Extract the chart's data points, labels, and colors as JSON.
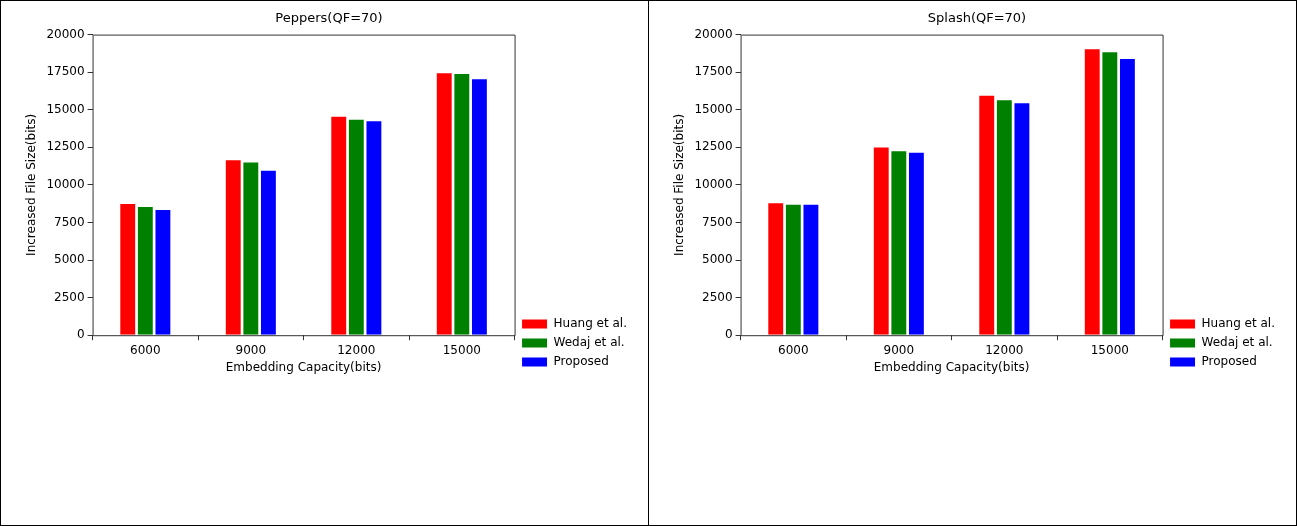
{
  "chart_data": [
    {
      "type": "bar",
      "title": "Peppers(QF=70)",
      "xlabel": "Embedding Capacity(bits)",
      "ylabel": "Increased File Size(bits)",
      "categories": [
        "6000",
        "9000",
        "12000",
        "15000"
      ],
      "series": [
        {
          "name": "Huang et al.",
          "color": "#ff0000",
          "values": [
            8800,
            11700,
            14600,
            17500
          ]
        },
        {
          "name": "Wedaj et al.",
          "color": "#008000",
          "values": [
            8600,
            11550,
            14400,
            17450
          ]
        },
        {
          "name": "Proposed",
          "color": "#0000ff",
          "values": [
            8400,
            11000,
            14300,
            17100
          ]
        }
      ],
      "ylim": [
        0,
        20000
      ],
      "yticks": [
        0,
        2500,
        5000,
        7500,
        10000,
        12500,
        15000,
        17500,
        20000
      ],
      "grid": false,
      "legend": "bottom right"
    },
    {
      "type": "bar",
      "title": "Splash(QF=70)",
      "xlabel": "Embedding Capacity(bits)",
      "ylabel": "Increased File Size(bits)",
      "categories": [
        "6000",
        "9000",
        "12000",
        "15000"
      ],
      "series": [
        {
          "name": "Huang et al.",
          "color": "#ff0000",
          "values": [
            8850,
            12550,
            16000,
            19100
          ]
        },
        {
          "name": "Wedaj et al.",
          "color": "#008000",
          "values": [
            8750,
            12300,
            15700,
            18900
          ]
        },
        {
          "name": "Proposed",
          "color": "#0000ff",
          "values": [
            8750,
            12200,
            15500,
            18450
          ]
        }
      ],
      "ylim": [
        0,
        20000
      ],
      "yticks": [
        0,
        2500,
        5000,
        7500,
        10000,
        12500,
        15000,
        17500,
        20000
      ],
      "grid": false,
      "legend": "bottom right"
    }
  ]
}
